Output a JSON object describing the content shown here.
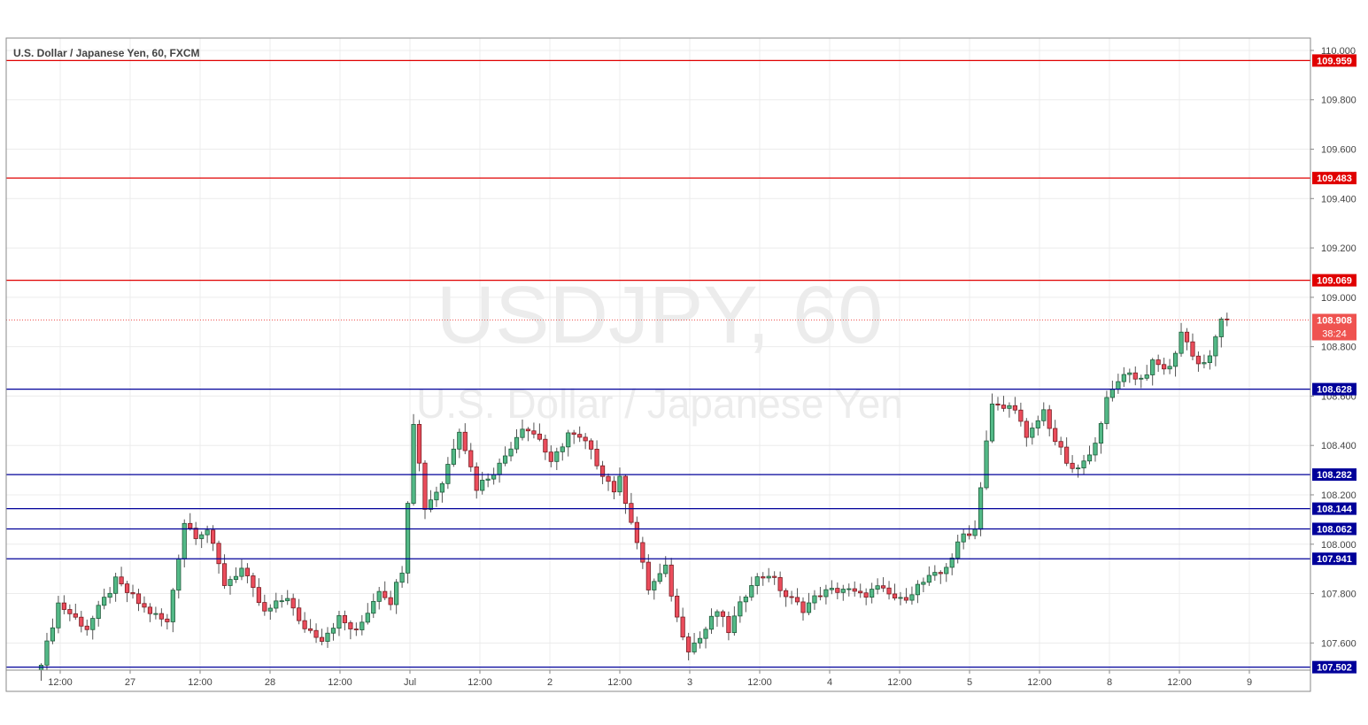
{
  "header": {
    "symbol_line": "U.S. Dollar / Japanese Yen, 60, FXCM"
  },
  "watermark": {
    "line1": "USDJPY, 60",
    "line2": "U.S. Dollar / Japanese Yen"
  },
  "colors": {
    "up": "#53b987",
    "down": "#eb4d5c",
    "up_border": "#1e5b3a",
    "down_border": "#7a1c22",
    "resistance": "#e00000",
    "support": "#00009a",
    "grid": "#ececec",
    "axis_text": "#444444",
    "last_price_bg": "#ef5350",
    "watermark": "#ececec"
  },
  "chart_data": {
    "type": "candlestick",
    "title": "U.S. Dollar / Japanese Yen, 60, FXCM",
    "ylim": [
      107.49,
      110.05
    ],
    "y_ticks": [
      "110.000",
      "109.800",
      "109.600",
      "109.400",
      "109.200",
      "109.000",
      "108.800",
      "108.600",
      "108.400",
      "108.200",
      "108.000",
      "107.800",
      "107.600"
    ],
    "x_tick_labels": [
      "12:00",
      "27",
      "12:00",
      "28",
      "12:00",
      "Jul",
      "12:00",
      "2",
      "12:00",
      "3",
      "12:00",
      "4",
      "12:00",
      "5",
      "12:00",
      "8",
      "12:00",
      "9"
    ],
    "grid": true,
    "levels": [
      {
        "value": "109.959",
        "kind": "resistance"
      },
      {
        "value": "109.483",
        "kind": "resistance"
      },
      {
        "value": "109.069",
        "kind": "resistance"
      },
      {
        "value": "108.628",
        "kind": "support"
      },
      {
        "value": "108.282",
        "kind": "support"
      },
      {
        "value": "108.144",
        "kind": "support"
      },
      {
        "value": "108.062",
        "kind": "support"
      },
      {
        "value": "107.941",
        "kind": "support"
      },
      {
        "value": "107.502",
        "kind": "support"
      }
    ],
    "last_price": {
      "value": "108.908",
      "countdown": "38:24"
    },
    "legs": [
      [
        0,
        107.51
      ],
      [
        3,
        107.76
      ],
      [
        8,
        107.66
      ],
      [
        13,
        107.85
      ],
      [
        18,
        107.74
      ],
      [
        22,
        107.68
      ],
      [
        25,
        108.09
      ],
      [
        27,
        108.04
      ],
      [
        29,
        108.06
      ],
      [
        32,
        107.84
      ],
      [
        35,
        107.9
      ],
      [
        39,
        107.72
      ],
      [
        43,
        107.79
      ],
      [
        45,
        107.68
      ],
      [
        49,
        107.62
      ],
      [
        52,
        107.7
      ],
      [
        55,
        107.64
      ],
      [
        59,
        107.82
      ],
      [
        61,
        107.77
      ],
      [
        63,
        107.9
      ],
      [
        64,
        108.18
      ],
      [
        65,
        108.5
      ],
      [
        67,
        108.15
      ],
      [
        70,
        108.25
      ],
      [
        73,
        108.47
      ],
      [
        76,
        108.23
      ],
      [
        80,
        108.32
      ],
      [
        84,
        108.48
      ],
      [
        87,
        108.43
      ],
      [
        89,
        108.32
      ],
      [
        92,
        108.45
      ],
      [
        95,
        108.41
      ],
      [
        98,
        108.29
      ],
      [
        100,
        108.22
      ],
      [
        101,
        108.26
      ],
      [
        103,
        108.1
      ],
      [
        106,
        107.82
      ],
      [
        109,
        107.9
      ],
      [
        111,
        107.7
      ],
      [
        113,
        107.58
      ],
      [
        115,
        107.62
      ],
      [
        118,
        107.73
      ],
      [
        120,
        107.65
      ],
      [
        124,
        107.85
      ],
      [
        127,
        107.88
      ],
      [
        130,
        107.79
      ],
      [
        133,
        107.74
      ],
      [
        136,
        107.8
      ],
      [
        140,
        107.82
      ],
      [
        143,
        107.79
      ],
      [
        146,
        107.82
      ],
      [
        150,
        107.77
      ],
      [
        153,
        107.83
      ],
      [
        155,
        107.86
      ],
      [
        157,
        107.88
      ],
      [
        159,
        107.95
      ],
      [
        161,
        108.04
      ],
      [
        163,
        108.06
      ],
      [
        165,
        108.42
      ],
      [
        166,
        108.56
      ],
      [
        168,
        108.55
      ],
      [
        170,
        108.56
      ],
      [
        172,
        108.42
      ],
      [
        175,
        108.54
      ],
      [
        177,
        108.42
      ],
      [
        180,
        108.29
      ],
      [
        183,
        108.35
      ],
      [
        186,
        108.58
      ],
      [
        189,
        108.7
      ],
      [
        192,
        108.67
      ],
      [
        194,
        108.73
      ],
      [
        197,
        108.71
      ],
      [
        199,
        108.86
      ],
      [
        202,
        108.73
      ],
      [
        204,
        108.75
      ],
      [
        206,
        108.92
      ],
      [
        207,
        108.908
      ]
    ]
  }
}
